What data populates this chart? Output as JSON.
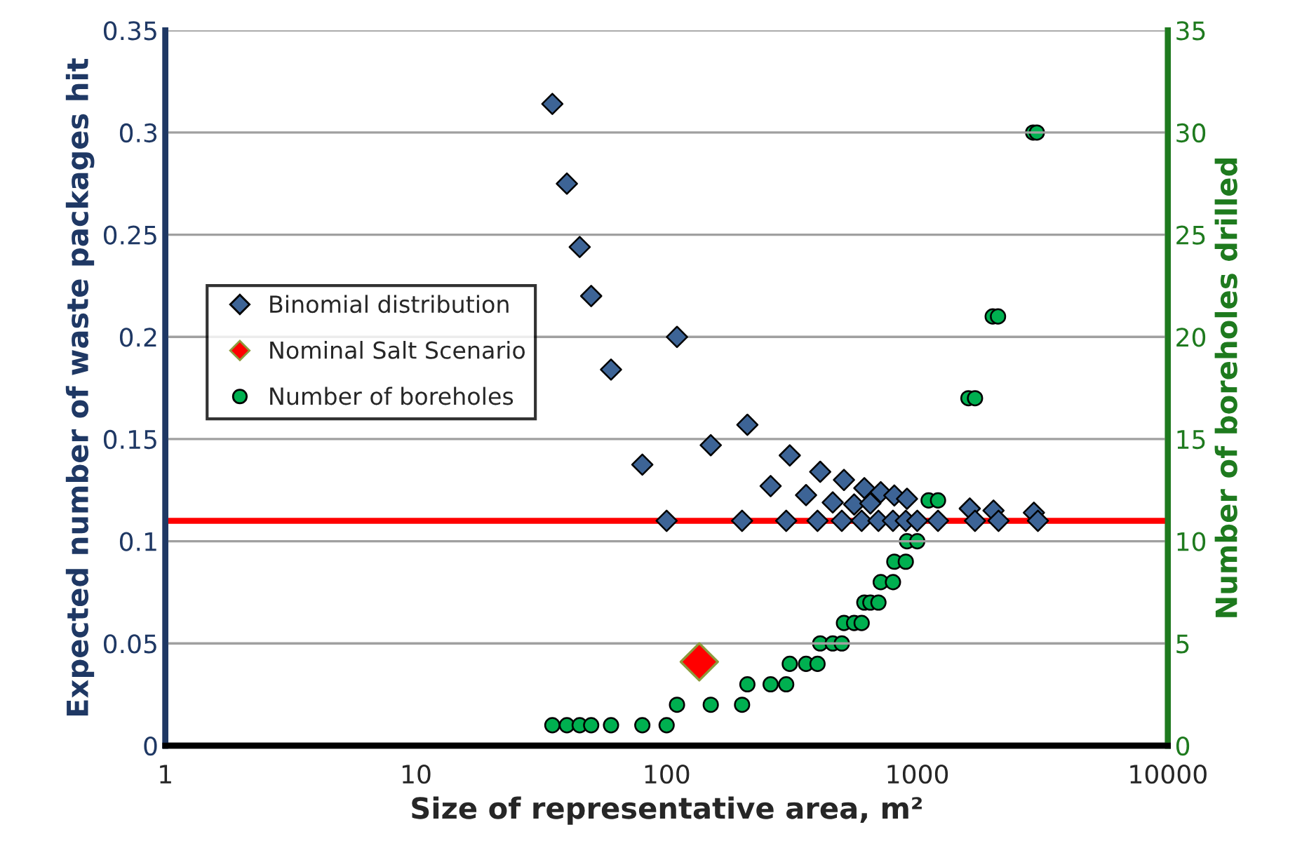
{
  "chart_data": {
    "type": "scatter",
    "xlabel": "Size of representative area, m²",
    "ylabel": "Expected number of waste packages hit",
    "y2label": "Number of boreholes drilled",
    "log": "x",
    "xlim": [
      1,
      10000
    ],
    "xticks": [
      1,
      10,
      100,
      1000,
      10000
    ],
    "ylim": [
      0,
      0.35
    ],
    "yticks": [
      0,
      0.05,
      0.1,
      0.15,
      0.2,
      0.25,
      0.3,
      0.35
    ],
    "y2lim": [
      0,
      35
    ],
    "y2ticks": [
      0,
      5,
      10,
      15,
      20,
      25,
      30,
      35
    ],
    "grid": "y",
    "legend": "left",
    "series": [
      {
        "name": "Binomial distribution",
        "color": "#3d6496",
        "marker": "diamond",
        "x": [
          35,
          40,
          45,
          50,
          60,
          80,
          100,
          110,
          150,
          200,
          210,
          260,
          300,
          310,
          360,
          400,
          410,
          460,
          500,
          510,
          560,
          600,
          615,
          650,
          700,
          715,
          800,
          810,
          900,
          910,
          1000,
          1210,
          1620,
          1700,
          2015,
          2110,
          2920,
          3030
        ],
        "values": [
          0.314,
          0.275,
          0.244,
          0.22,
          0.184,
          0.1375,
          0.11,
          0.2,
          0.147,
          0.11,
          0.157,
          0.127,
          0.11,
          0.142,
          0.1226,
          0.11,
          0.134,
          0.119,
          0.11,
          0.13,
          0.118,
          0.11,
          0.126,
          0.1185,
          0.11,
          0.124,
          0.11,
          0.1224,
          0.11,
          0.1208,
          0.11,
          0.11,
          0.116,
          0.11,
          0.115,
          0.11,
          0.114,
          0.11
        ]
      },
      {
        "name": "Nominal Salt Scenario",
        "color": "#ff0000",
        "marker": "diamond",
        "x": [
          135
        ],
        "values": [
          0.041
        ]
      },
      {
        "name": "Number of boreholes",
        "color": "#00b050",
        "marker": "circle",
        "axis": "y2",
        "x": [
          35,
          40,
          45,
          50,
          60,
          80,
          100,
          110,
          150,
          200,
          210,
          260,
          300,
          310,
          360,
          400,
          410,
          460,
          500,
          510,
          560,
          600,
          615,
          650,
          700,
          715,
          800,
          810,
          900,
          910,
          1000,
          1110,
          1210,
          1600,
          1700,
          2000,
          2100,
          2900,
          3000
        ],
        "values": [
          1,
          1,
          1,
          1,
          1,
          1,
          1,
          2,
          2,
          2,
          3,
          3,
          3,
          4,
          4,
          4,
          5,
          5,
          5,
          6,
          6,
          6,
          7,
          7,
          7,
          8,
          8,
          9,
          9,
          10,
          10,
          12,
          12,
          17,
          17,
          21,
          21,
          30,
          30
        ]
      }
    ],
    "ref_lines": [
      {
        "axis": "y",
        "value": 0.11,
        "color": "#ff0000",
        "line_style": "solid"
      }
    ]
  }
}
